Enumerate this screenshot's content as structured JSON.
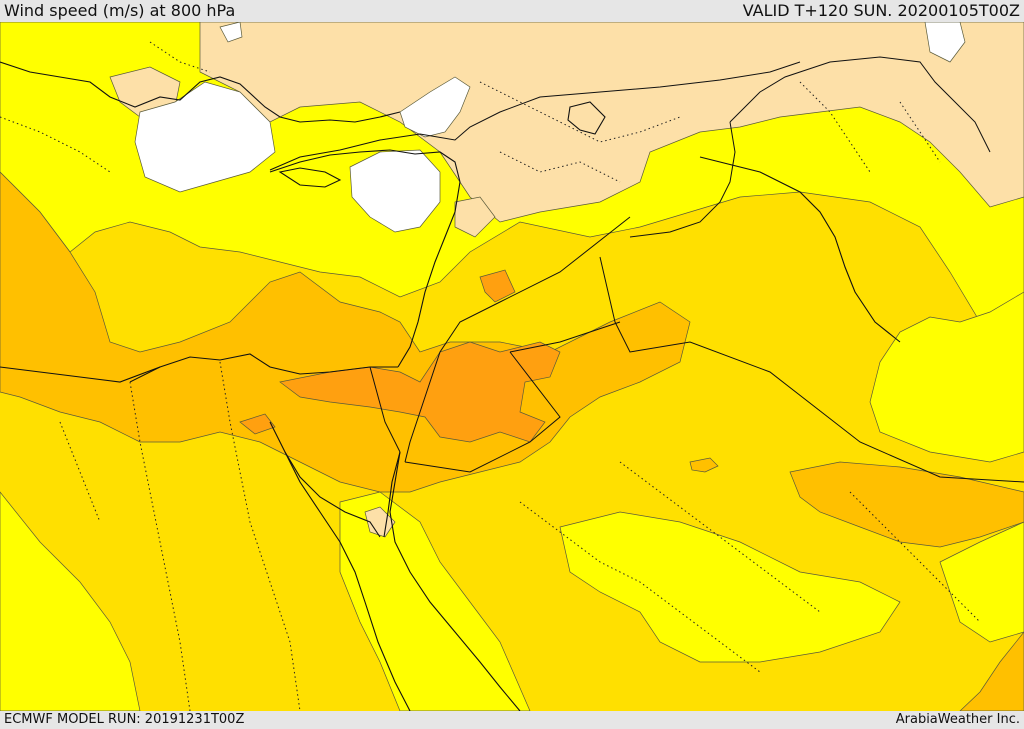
{
  "header": {
    "title": "Wind speed (m/s) at 800 hPa",
    "valid": "VALID T+120 SUN. 20200105T00Z"
  },
  "footer": {
    "model_run": "ECMWF MODEL RUN: 20191231T00Z",
    "credit": "ArabiaWeather Inc."
  },
  "colors": {
    "calm": "#ffffff",
    "light": "#fde0a8",
    "yellow": "#ffff00",
    "yellow_orange": "#ffe000",
    "orange_light": "#ffc000",
    "orange": "#ffa010"
  }
}
